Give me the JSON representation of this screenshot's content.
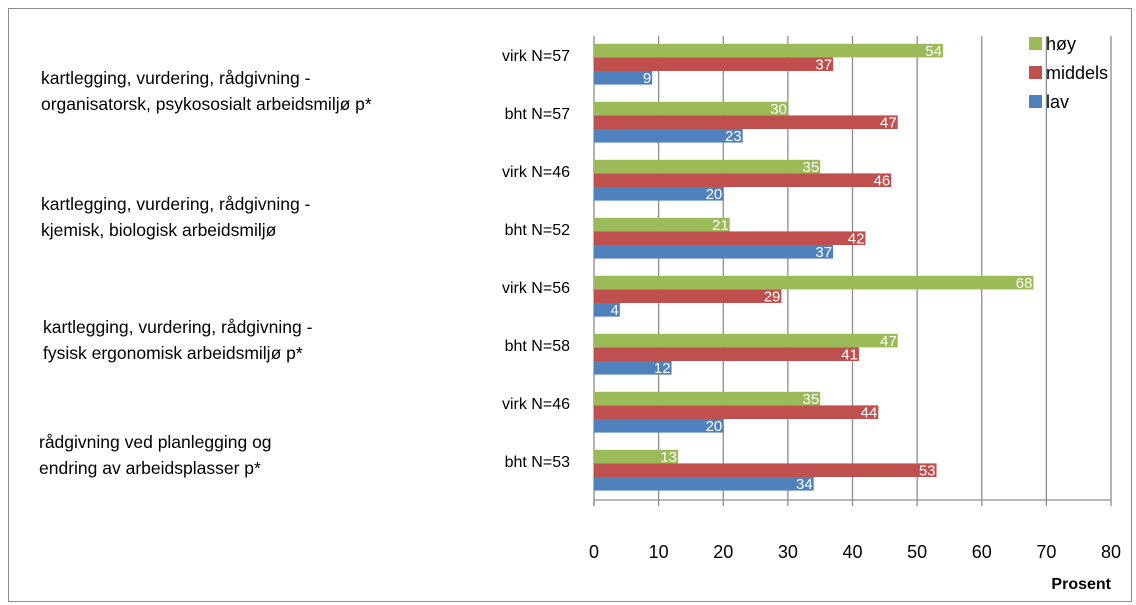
{
  "chart_data": {
    "type": "bar",
    "orientation": "horizontal",
    "groups": [
      {
        "lines": [
          "kartlegging, vurdering, rådgivning -",
          "organisatorsk, psykososialt arbeidsmiljø p*"
        ]
      },
      {
        "lines": [
          "kartlegging, vurdering, rådgivning -",
          "kjemisk, biologisk arbeidsmiljø"
        ]
      },
      {
        "lines": [
          "kartlegging, vurdering, rådgivning -",
          "fysisk ergonomisk arbeidsmiljø p*"
        ]
      },
      {
        "lines": [
          "rådgivning ved planlegging og",
          "endring av arbeidsplasser p*"
        ]
      }
    ],
    "categories": [
      "virk N=57",
      "bht N=57",
      "virk N=46",
      "bht N=52",
      "virk N=56",
      "bht N=58",
      "virk N=46",
      "bht N=53"
    ],
    "series": [
      {
        "name": "høy",
        "color": "#9bbb59",
        "values": [
          54,
          30,
          35,
          21,
          68,
          47,
          35,
          13
        ]
      },
      {
        "name": "middels",
        "color": "#c0504d",
        "values": [
          37,
          47,
          46,
          42,
          29,
          41,
          44,
          53
        ]
      },
      {
        "name": "lav",
        "color": "#4f81bd",
        "values": [
          9,
          23,
          20,
          37,
          4,
          12,
          20,
          34
        ]
      }
    ],
    "xlim": [
      0,
      80
    ],
    "xticks": [
      "0",
      "10",
      "20",
      "30",
      "40",
      "50",
      "60",
      "70",
      "80"
    ],
    "xlabel": "Prosent",
    "grid": "vertical",
    "legend_position": "top-right"
  }
}
